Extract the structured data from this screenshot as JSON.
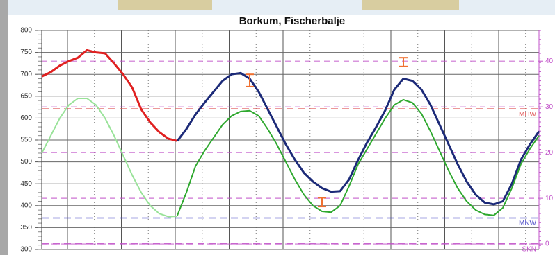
{
  "chart_data": {
    "type": "line",
    "title": "Borkum, Fischerbalje",
    "ylim": [
      300,
      800
    ],
    "yticks": [
      300,
      350,
      400,
      450,
      500,
      550,
      600,
      650,
      700,
      750,
      800
    ],
    "y2lim": [
      -1.2,
      46.7
    ],
    "y2ticks": [
      0,
      10,
      20,
      30,
      40
    ],
    "grid": true,
    "series": [
      {
        "color": "#e02020",
        "width": 3,
        "values": [
          695,
          705,
          720,
          730,
          738,
          755,
          750,
          748,
          725,
          700,
          670,
          620,
          590,
          568,
          553,
          548,
          null,
          null,
          null,
          null,
          null,
          null,
          null,
          null,
          null,
          null,
          null,
          null,
          null,
          null,
          null,
          null,
          null,
          null,
          null,
          null,
          null,
          null,
          null,
          null,
          null,
          null,
          null,
          null,
          null,
          null,
          null,
          null,
          null,
          null,
          null,
          null,
          null,
          null,
          null,
          null
        ]
      },
      {
        "color": "#1c2a78",
        "width": 3,
        "values": [
          null,
          null,
          null,
          null,
          null,
          null,
          null,
          null,
          null,
          null,
          null,
          null,
          null,
          null,
          null,
          548,
          575,
          608,
          635,
          660,
          685,
          700,
          703,
          690,
          660,
          620,
          580,
          540,
          505,
          475,
          455,
          440,
          432,
          433,
          460,
          505,
          545,
          580,
          618,
          665,
          690,
          685,
          665,
          630,
          585,
          540,
          495,
          455,
          425,
          407,
          403,
          410,
          450,
          505,
          540,
          570
        ]
      },
      {
        "color": "#98e298",
        "width": 2,
        "values": [
          520,
          560,
          600,
          630,
          645,
          645,
          630,
          600,
          560,
          515,
          470,
          430,
          400,
          382,
          375,
          376,
          null,
          null,
          null,
          null,
          null,
          null,
          null,
          null,
          null,
          null,
          null,
          null,
          null,
          null,
          null,
          null,
          null,
          null,
          null,
          null,
          null,
          null,
          null,
          null,
          null,
          null,
          null,
          null,
          null,
          null,
          null,
          null,
          null,
          null,
          null,
          null,
          null,
          null,
          null,
          null
        ]
      },
      {
        "color": "#2ea82e",
        "width": 2,
        "values": [
          null,
          null,
          null,
          null,
          null,
          null,
          null,
          null,
          null,
          null,
          null,
          null,
          null,
          null,
          null,
          378,
          430,
          490,
          525,
          555,
          585,
          605,
          615,
          617,
          605,
          575,
          540,
          500,
          460,
          425,
          400,
          387,
          385,
          400,
          445,
          495,
          530,
          565,
          600,
          630,
          642,
          635,
          610,
          570,
          525,
          480,
          440,
          410,
          390,
          380,
          378,
          395,
          440,
          495,
          530,
          560
        ]
      },
      {
        "color": "#f07030",
        "width": 2,
        "kind": "errorbar",
        "values": [
          null,
          null,
          null,
          null,
          null,
          null,
          null,
          null,
          null,
          null,
          null,
          null,
          null,
          null,
          null,
          null,
          null,
          null,
          null,
          null,
          null,
          null,
          null,
          686,
          null,
          null,
          null,
          null,
          null,
          null,
          null,
          408,
          null,
          null,
          null,
          null,
          null,
          null,
          null,
          null,
          728,
          null,
          null,
          null,
          null,
          null,
          null,
          null,
          null,
          null,
          null,
          null,
          null,
          null,
          null,
          null
        ],
        "errors": [
          null,
          null,
          null,
          null,
          null,
          null,
          null,
          null,
          null,
          null,
          null,
          null,
          null,
          null,
          null,
          null,
          null,
          null,
          null,
          null,
          null,
          null,
          null,
          14,
          null,
          null,
          null,
          null,
          null,
          null,
          null,
          10,
          null,
          null,
          null,
          null,
          null,
          null,
          null,
          null,
          10,
          null,
          null,
          null,
          null,
          null,
          null,
          null,
          null,
          null,
          null,
          null,
          null,
          null,
          null,
          null
        ]
      }
    ],
    "reference_lines": [
      {
        "label": "MHW",
        "value": 621,
        "color": "#e05a5a"
      },
      {
        "label": "MNW",
        "value": 372,
        "color": "#5050c8"
      },
      {
        "label": "SKN",
        "value": 313,
        "color": "#c050c8"
      }
    ],
    "y2_color": "#c050c8"
  }
}
